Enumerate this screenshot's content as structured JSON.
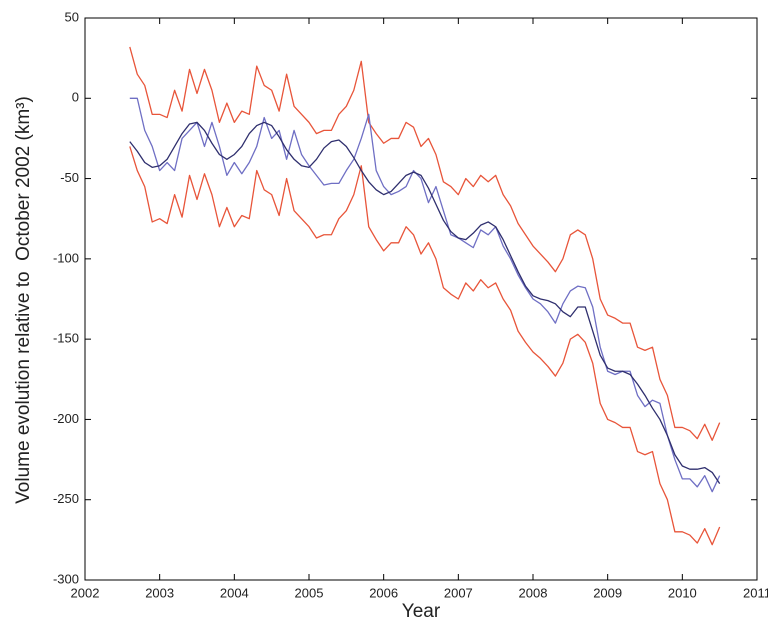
{
  "chart_data": {
    "type": "line",
    "xlabel": "Year",
    "ylabel": "Volume evolution relative to  October 2002 (km³)",
    "xlim": [
      2002,
      2011
    ],
    "xticks": [
      2002,
      2003,
      2004,
      2005,
      2006,
      2007,
      2008,
      2009,
      2010,
      2011
    ],
    "ylim": [
      -300,
      50
    ],
    "yticks": [
      -300,
      -250,
      -200,
      -150,
      -100,
      -50,
      0,
      50
    ],
    "grid": false,
    "x": [
      2002.6,
      2002.7,
      2002.8,
      2002.9,
      2003.0,
      2003.1,
      2003.2,
      2003.3,
      2003.4,
      2003.5,
      2003.6,
      2003.7,
      2003.8,
      2003.9,
      2004.0,
      2004.1,
      2004.2,
      2004.3,
      2004.4,
      2004.5,
      2004.6,
      2004.7,
      2004.8,
      2004.9,
      2005.0,
      2005.1,
      2005.2,
      2005.3,
      2005.4,
      2005.5,
      2005.6,
      2005.7,
      2005.8,
      2005.9,
      2006.0,
      2006.1,
      2006.2,
      2006.3,
      2006.4,
      2006.5,
      2006.6,
      2006.7,
      2006.8,
      2006.9,
      2007.0,
      2007.1,
      2007.2,
      2007.3,
      2007.4,
      2007.5,
      2007.6,
      2007.7,
      2007.8,
      2007.9,
      2008.0,
      2008.1,
      2008.2,
      2008.3,
      2008.4,
      2008.5,
      2008.6,
      2008.7,
      2008.8,
      2008.9,
      2009.0,
      2009.1,
      2009.2,
      2009.3,
      2009.4,
      2009.5,
      2009.6,
      2009.7,
      2009.8,
      2009.9,
      2010.0,
      2010.1,
      2010.2,
      2010.3,
      2010.4,
      2010.5
    ],
    "series": [
      {
        "color": "#e8553a",
        "values": [
          32,
          15,
          8,
          -10,
          -10,
          -12,
          5,
          -8,
          18,
          3,
          18,
          5,
          -15,
          -3,
          -15,
          -8,
          -10,
          20,
          8,
          5,
          -8,
          15,
          -5,
          -10,
          -15,
          -22,
          -20,
          -20,
          -10,
          -5,
          5,
          23,
          -15,
          -22,
          -28,
          -25,
          -25,
          -15,
          -18,
          -30,
          -25,
          -35,
          -52,
          -55,
          -60,
          -50,
          -55,
          -48,
          -52,
          -48,
          -60,
          -67,
          -78,
          -85,
          -92,
          -97,
          -102,
          -108,
          -100,
          -85,
          -82,
          -85,
          -100,
          -125,
          -135,
          -137,
          -140,
          -140,
          -155,
          -157,
          -155,
          -175,
          -185,
          -205,
          -205,
          -207,
          -212,
          -203,
          -213,
          -202
        ]
      },
      {
        "color": "#e8553a",
        "values": [
          -30,
          -45,
          -55,
          -77,
          -75,
          -78,
          -60,
          -74,
          -48,
          -63,
          -47,
          -60,
          -80,
          -68,
          -80,
          -73,
          -75,
          -45,
          -57,
          -60,
          -73,
          -50,
          -70,
          -75,
          -80,
          -87,
          -85,
          -85,
          -75,
          -70,
          -60,
          -42,
          -80,
          -88,
          -95,
          -90,
          -90,
          -80,
          -85,
          -97,
          -90,
          -100,
          -118,
          -122,
          -125,
          -115,
          -120,
          -113,
          -118,
          -115,
          -125,
          -132,
          -145,
          -152,
          -158,
          -162,
          -167,
          -173,
          -165,
          -150,
          -147,
          -152,
          -165,
          -190,
          -200,
          -202,
          -205,
          -205,
          -220,
          -222,
          -220,
          -240,
          -250,
          -270,
          -270,
          -272,
          -277,
          -268,
          -278,
          -267
        ]
      },
      {
        "color": "#6f6fc4",
        "values": [
          0,
          0,
          -20,
          -30,
          -45,
          -40,
          -45,
          -25,
          -20,
          -15,
          -30,
          -15,
          -30,
          -48,
          -40,
          -47,
          -40,
          -30,
          -12,
          -25,
          -20,
          -38,
          -20,
          -35,
          -42,
          -48,
          -54,
          -53,
          -53,
          -45,
          -38,
          -25,
          -10,
          -45,
          -55,
          -60,
          -58,
          -55,
          -45,
          -50,
          -65,
          -55,
          -70,
          -85,
          -87,
          -90,
          -93,
          -82,
          -85,
          -80,
          -92,
          -100,
          -110,
          -118,
          -125,
          -128,
          -133,
          -140,
          -128,
          -120,
          -117,
          -118,
          -130,
          -155,
          -170,
          -172,
          -170,
          -170,
          -185,
          -192,
          -188,
          -190,
          -210,
          -225,
          -237,
          -237,
          -242,
          -235,
          -245,
          -235
        ]
      },
      {
        "color": "#2f2f6e",
        "values": [
          -27,
          -33,
          -40,
          -43,
          -42,
          -38,
          -30,
          -22,
          -16,
          -15,
          -20,
          -28,
          -35,
          -38,
          -35,
          -30,
          -22,
          -17,
          -15,
          -17,
          -24,
          -32,
          -38,
          -42,
          -43,
          -38,
          -31,
          -27,
          -26,
          -30,
          -37,
          -45,
          -52,
          -57,
          -60,
          -58,
          -53,
          -48,
          -46,
          -48,
          -56,
          -66,
          -76,
          -83,
          -87,
          -88,
          -84,
          -79,
          -77,
          -80,
          -88,
          -98,
          -108,
          -117,
          -123,
          -125,
          -126,
          -128,
          -133,
          -136,
          -130,
          -130,
          -145,
          -160,
          -168,
          -170,
          -170,
          -172,
          -178,
          -185,
          -193,
          -200,
          -210,
          -222,
          -229,
          -231,
          -231,
          -230,
          -233,
          -240
        ]
      }
    ]
  }
}
